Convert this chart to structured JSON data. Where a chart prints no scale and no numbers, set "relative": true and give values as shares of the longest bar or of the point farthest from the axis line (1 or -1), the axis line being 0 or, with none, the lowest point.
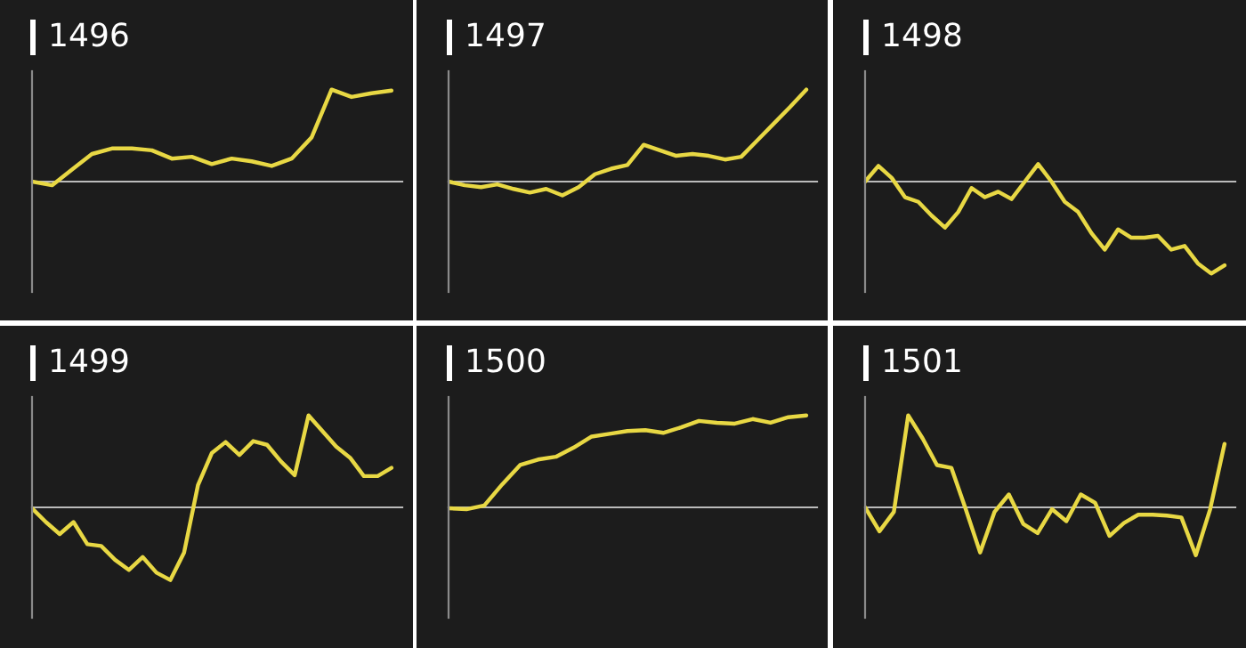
{
  "chart_data": [
    {
      "type": "line",
      "title": "1496",
      "relative": true,
      "categories": [
        null,
        null,
        null,
        null,
        null,
        null,
        null,
        null,
        null,
        null,
        null,
        null,
        null,
        null,
        null,
        null,
        null,
        null,
        null
      ],
      "series": [
        {
          "color": "#e8d844",
          "values": [
            0,
            -0.04,
            0.13,
            0.3,
            0.36,
            0.36,
            0.34,
            0.25,
            0.27,
            0.19,
            0.25,
            0.22,
            0.17,
            0.25,
            0.48,
            1,
            0.92,
            0.96,
            0.99
          ]
        }
      ]
    },
    {
      "type": "line",
      "title": "1497",
      "relative": true,
      "categories": [
        null,
        null,
        null,
        null,
        null,
        null,
        null,
        null,
        null,
        null,
        null,
        null,
        null,
        null,
        null,
        null,
        null,
        null,
        null,
        null,
        null,
        null,
        null
      ],
      "series": [
        {
          "color": "#e8d844",
          "values": [
            0,
            -0.04,
            -0.06,
            -0.03,
            -0.08,
            -0.12,
            -0.08,
            -0.15,
            -0.06,
            0.08,
            0.14,
            0.18,
            0.4,
            0.34,
            0.28,
            0.3,
            0.28,
            0.24,
            0.27,
            0.45,
            0.63,
            0.81,
            1
          ]
        }
      ]
    },
    {
      "type": "line",
      "title": "1498",
      "relative": true,
      "categories": [
        null,
        null,
        null,
        null,
        null,
        null,
        null,
        null,
        null,
        null,
        null,
        null,
        null,
        null,
        null,
        null,
        null,
        null,
        null,
        null,
        null,
        null,
        null,
        null,
        null,
        null,
        null,
        null
      ],
      "series": [
        {
          "color": "#e8d844",
          "values": [
            0,
            0.17,
            0.04,
            -0.17,
            -0.22,
            -0.37,
            -0.5,
            -0.33,
            -0.07,
            -0.17,
            -0.11,
            -0.19,
            0,
            0.19,
            0,
            -0.22,
            -0.33,
            -0.56,
            -0.74,
            -0.52,
            -0.61,
            -0.61,
            -0.59,
            -0.74,
            -0.7,
            -0.89,
            -1,
            -0.91
          ]
        }
      ]
    },
    {
      "type": "line",
      "title": "1499",
      "relative": true,
      "categories": [
        null,
        null,
        null,
        null,
        null,
        null,
        null,
        null,
        null,
        null,
        null,
        null,
        null,
        null,
        null,
        null,
        null,
        null,
        null,
        null,
        null,
        null,
        null,
        null,
        null,
        null,
        null
      ],
      "series": [
        {
          "color": "#e8d844",
          "values": [
            -0.01,
            -0.16,
            -0.29,
            -0.16,
            -0.4,
            -0.42,
            -0.57,
            -0.68,
            -0.54,
            -0.71,
            -0.79,
            -0.49,
            0.24,
            0.59,
            0.71,
            0.57,
            0.72,
            0.68,
            0.5,
            0.35,
            1,
            0.83,
            0.66,
            0.54,
            0.34,
            0.34,
            0.43
          ]
        }
      ]
    },
    {
      "type": "line",
      "title": "1500",
      "relative": true,
      "categories": [
        null,
        null,
        null,
        null,
        null,
        null,
        null,
        null,
        null,
        null,
        null,
        null,
        null,
        null,
        null,
        null,
        null,
        null,
        null,
        null,
        null
      ],
      "series": [
        {
          "color": "#e8d844",
          "values": [
            -0.01,
            -0.02,
            0.02,
            0.25,
            0.46,
            0.52,
            0.55,
            0.65,
            0.77,
            0.8,
            0.83,
            0.84,
            0.81,
            0.87,
            0.94,
            0.92,
            0.91,
            0.96,
            0.92,
            0.98,
            1
          ]
        }
      ]
    },
    {
      "type": "line",
      "title": "1501",
      "relative": true,
      "categories": [
        null,
        null,
        null,
        null,
        null,
        null,
        null,
        null,
        null,
        null,
        null,
        null,
        null,
        null,
        null,
        null,
        null,
        null,
        null,
        null,
        null,
        null,
        null,
        null,
        null,
        null
      ],
      "series": [
        {
          "color": "#e8d844",
          "values": [
            0,
            -0.26,
            -0.05,
            1,
            0.75,
            0.46,
            0.43,
            -0.02,
            -0.49,
            -0.05,
            0.14,
            -0.18,
            -0.28,
            -0.02,
            -0.15,
            0.14,
            0.05,
            -0.31,
            -0.17,
            -0.08,
            -0.08,
            -0.09,
            -0.11,
            -0.52,
            -0.02,
            0.69
          ]
        }
      ]
    }
  ]
}
